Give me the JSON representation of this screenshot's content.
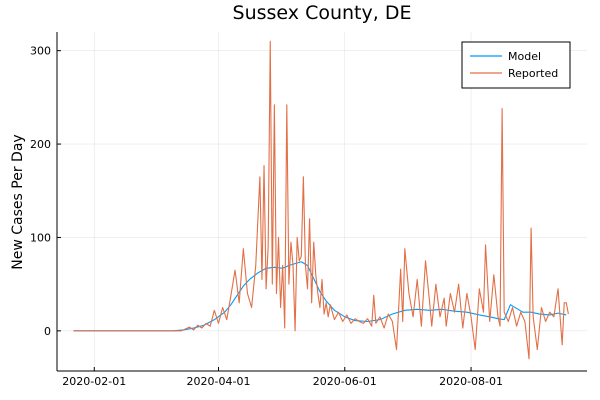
{
  "chart_data": {
    "type": "line",
    "title": "Sussex County, DE",
    "xlabel": "",
    "ylabel": "New Cases Per Day",
    "x_axis": {
      "type": "date",
      "range": [
        "2020-01-14",
        "2020-09-26"
      ],
      "ticks": [
        "2020-02-01",
        "2020-04-01",
        "2020-06-01",
        "2020-08-01"
      ]
    },
    "y_axis": {
      "range": [
        -43,
        320
      ],
      "ticks": [
        0,
        100,
        200,
        300
      ]
    },
    "grid": true,
    "legend": {
      "position": "top-right"
    },
    "series": [
      {
        "name": "Model",
        "color": "#009AFA",
        "points": [
          [
            "2020-01-22",
            0
          ],
          [
            "2020-03-10",
            0
          ],
          [
            "2020-03-15",
            1
          ],
          [
            "2020-03-20",
            3
          ],
          [
            "2020-03-25",
            6
          ],
          [
            "2020-03-30",
            12
          ],
          [
            "2020-04-04",
            20
          ],
          [
            "2020-04-07",
            28
          ],
          [
            "2020-04-10",
            38
          ],
          [
            "2020-04-13",
            48
          ],
          [
            "2020-04-16",
            55
          ],
          [
            "2020-04-20",
            62
          ],
          [
            "2020-04-24",
            67
          ],
          [
            "2020-04-28",
            68
          ],
          [
            "2020-05-02",
            67
          ],
          [
            "2020-05-05",
            70
          ],
          [
            "2020-05-08",
            72
          ],
          [
            "2020-05-11",
            74
          ],
          [
            "2020-05-14",
            70
          ],
          [
            "2020-05-17",
            56
          ],
          [
            "2020-05-20",
            42
          ],
          [
            "2020-05-23",
            32
          ],
          [
            "2020-05-27",
            22
          ],
          [
            "2020-06-01",
            15
          ],
          [
            "2020-06-06",
            11
          ],
          [
            "2020-06-12",
            10
          ],
          [
            "2020-06-18",
            12
          ],
          [
            "2020-06-24",
            18
          ],
          [
            "2020-06-30",
            22
          ],
          [
            "2020-07-06",
            23
          ],
          [
            "2020-07-12",
            22
          ],
          [
            "2020-07-18",
            23
          ],
          [
            "2020-07-24",
            21
          ],
          [
            "2020-07-30",
            20
          ],
          [
            "2020-08-05",
            17
          ],
          [
            "2020-08-10",
            15
          ],
          [
            "2020-08-14",
            13
          ],
          [
            "2020-08-17",
            12
          ],
          [
            "2020-08-20",
            28
          ],
          [
            "2020-08-23",
            24
          ],
          [
            "2020-08-26",
            20
          ],
          [
            "2020-08-30",
            20
          ],
          [
            "2020-09-03",
            18
          ],
          [
            "2020-09-08",
            17
          ],
          [
            "2020-09-12",
            19
          ],
          [
            "2020-09-16",
            17
          ]
        ]
      },
      {
        "name": "Reported",
        "color": "#E26F46",
        "points": [
          [
            "2020-01-22",
            0
          ],
          [
            "2020-03-14",
            0
          ],
          [
            "2020-03-16",
            2
          ],
          [
            "2020-03-18",
            4
          ],
          [
            "2020-03-20",
            1
          ],
          [
            "2020-03-22",
            6
          ],
          [
            "2020-03-24",
            3
          ],
          [
            "2020-03-26",
            8
          ],
          [
            "2020-03-28",
            5
          ],
          [
            "2020-03-30",
            22
          ],
          [
            "2020-04-01",
            8
          ],
          [
            "2020-04-03",
            25
          ],
          [
            "2020-04-05",
            12
          ],
          [
            "2020-04-07",
            38
          ],
          [
            "2020-04-09",
            65
          ],
          [
            "2020-04-11",
            30
          ],
          [
            "2020-04-13",
            88
          ],
          [
            "2020-04-15",
            40
          ],
          [
            "2020-04-17",
            25
          ],
          [
            "2020-04-19",
            70
          ],
          [
            "2020-04-21",
            165
          ],
          [
            "2020-04-22",
            55
          ],
          [
            "2020-04-23",
            177
          ],
          [
            "2020-04-24",
            45
          ],
          [
            "2020-04-25",
            90
          ],
          [
            "2020-04-26",
            310
          ],
          [
            "2020-04-27",
            50
          ],
          [
            "2020-04-28",
            242
          ],
          [
            "2020-04-29",
            40
          ],
          [
            "2020-04-30",
            100
          ],
          [
            "2020-05-01",
            25
          ],
          [
            "2020-05-02",
            70
          ],
          [
            "2020-05-03",
            3
          ],
          [
            "2020-05-04",
            242
          ],
          [
            "2020-05-05",
            50
          ],
          [
            "2020-05-06",
            95
          ],
          [
            "2020-05-07",
            70
          ],
          [
            "2020-05-08",
            0
          ],
          [
            "2020-05-09",
            100
          ],
          [
            "2020-05-10",
            75
          ],
          [
            "2020-05-11",
            80
          ],
          [
            "2020-05-12",
            165
          ],
          [
            "2020-05-13",
            70
          ],
          [
            "2020-05-14",
            45
          ],
          [
            "2020-05-15",
            120
          ],
          [
            "2020-05-16",
            30
          ],
          [
            "2020-05-17",
            95
          ],
          [
            "2020-05-18",
            60
          ],
          [
            "2020-05-19",
            40
          ],
          [
            "2020-05-20",
            25
          ],
          [
            "2020-05-21",
            55
          ],
          [
            "2020-05-22",
            18
          ],
          [
            "2020-05-23",
            30
          ],
          [
            "2020-05-24",
            15
          ],
          [
            "2020-05-25",
            28
          ],
          [
            "2020-05-27",
            12
          ],
          [
            "2020-05-29",
            20
          ],
          [
            "2020-05-31",
            10
          ],
          [
            "2020-06-02",
            17
          ],
          [
            "2020-06-04",
            8
          ],
          [
            "2020-06-06",
            13
          ],
          [
            "2020-06-08",
            10
          ],
          [
            "2020-06-10",
            8
          ],
          [
            "2020-06-12",
            13
          ],
          [
            "2020-06-14",
            5
          ],
          [
            "2020-06-15",
            38
          ],
          [
            "2020-06-16",
            8
          ],
          [
            "2020-06-18",
            15
          ],
          [
            "2020-06-20",
            3
          ],
          [
            "2020-06-22",
            18
          ],
          [
            "2020-06-24",
            10
          ],
          [
            "2020-06-26",
            -20
          ],
          [
            "2020-06-28",
            66
          ],
          [
            "2020-06-29",
            10
          ],
          [
            "2020-06-30",
            88
          ],
          [
            "2020-07-02",
            40
          ],
          [
            "2020-07-04",
            15
          ],
          [
            "2020-07-06",
            55
          ],
          [
            "2020-07-08",
            5
          ],
          [
            "2020-07-10",
            75
          ],
          [
            "2020-07-12",
            30
          ],
          [
            "2020-07-13",
            5
          ],
          [
            "2020-07-15",
            50
          ],
          [
            "2020-07-17",
            15
          ],
          [
            "2020-07-19",
            35
          ],
          [
            "2020-07-20",
            5
          ],
          [
            "2020-07-22",
            40
          ],
          [
            "2020-07-24",
            20
          ],
          [
            "2020-07-26",
            50
          ],
          [
            "2020-07-28",
            3
          ],
          [
            "2020-07-30",
            40
          ],
          [
            "2020-08-01",
            15
          ],
          [
            "2020-08-03",
            -20
          ],
          [
            "2020-08-05",
            45
          ],
          [
            "2020-08-07",
            20
          ],
          [
            "2020-08-08",
            92
          ],
          [
            "2020-08-10",
            10
          ],
          [
            "2020-08-12",
            60
          ],
          [
            "2020-08-14",
            15
          ],
          [
            "2020-08-15",
            5
          ],
          [
            "2020-08-16",
            238
          ],
          [
            "2020-08-17",
            20
          ],
          [
            "2020-08-19",
            10
          ],
          [
            "2020-08-21",
            25
          ],
          [
            "2020-08-23",
            5
          ],
          [
            "2020-08-25",
            20
          ],
          [
            "2020-08-27",
            10
          ],
          [
            "2020-08-29",
            -30
          ],
          [
            "2020-08-30",
            110
          ],
          [
            "2020-08-31",
            15
          ],
          [
            "2020-09-02",
            -20
          ],
          [
            "2020-09-04",
            25
          ],
          [
            "2020-09-06",
            10
          ],
          [
            "2020-09-08",
            20
          ],
          [
            "2020-09-10",
            15
          ],
          [
            "2020-09-12",
            45
          ],
          [
            "2020-09-14",
            -15
          ],
          [
            "2020-09-15",
            30
          ],
          [
            "2020-09-16",
            30
          ],
          [
            "2020-09-17",
            18
          ]
        ]
      }
    ]
  }
}
